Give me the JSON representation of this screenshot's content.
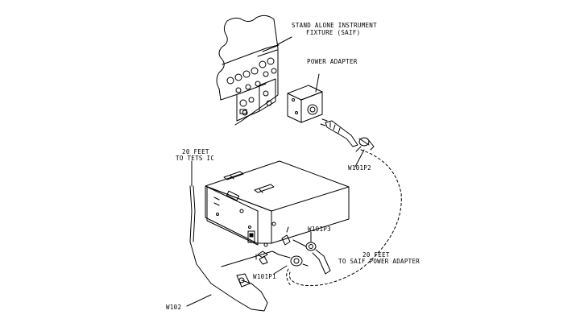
{
  "labels": {
    "saif_line1": "STAND ALONE INSTRUMENT",
    "saif_line2": "FIXTURE (SAIF)",
    "power_adapter": "POWER ADAPTER",
    "w101p2": "W101P2",
    "feet_tets_line1": "20 FEET",
    "feet_tets_line2": "TO TETS IC",
    "w101p3": "W101P3",
    "feet_saif_line1": "20 FEET",
    "feet_saif_line2": "TO SAIF POWER ADAPTER",
    "w101p1": "W101P1",
    "w102": "W102"
  }
}
